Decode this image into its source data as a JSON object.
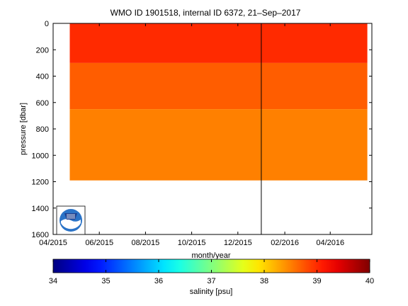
{
  "chart_data": {
    "type": "heatmap",
    "title": "WMO ID 1901518, internal ID 6372, 21–Sep–2017",
    "xlabel": "month/year",
    "ylabel": "pressure [dbar]",
    "x_ticks": [
      "04/2015",
      "06/2015",
      "08/2015",
      "10/2015",
      "12/2015",
      "02/2016",
      "04/2016"
    ],
    "y_ticks": [
      "0",
      "200",
      "400",
      "600",
      "800",
      "1000",
      "1200",
      "1400",
      "1600"
    ],
    "y_range": [
      0,
      1600
    ],
    "y_reversed": true,
    "x_range": [
      "2015-04-01",
      "2016-05-26"
    ],
    "marker_date": "2016-01-01",
    "colorbar": {
      "label": "salinity [psu]",
      "ticks": [
        "34",
        "35",
        "36",
        "37",
        "38",
        "39",
        "40"
      ],
      "range": [
        34,
        40
      ],
      "colormap": "jet"
    },
    "bands": [
      {
        "salinity": 39.0,
        "from_dbar": 0,
        "to_dbar": 300
      },
      {
        "salinity": 38.7,
        "from_dbar": 300,
        "to_dbar": 650
      },
      {
        "salinity": 38.5,
        "from_dbar": 650,
        "to_dbar": 1190
      }
    ],
    "logo": "noaa-logo"
  }
}
